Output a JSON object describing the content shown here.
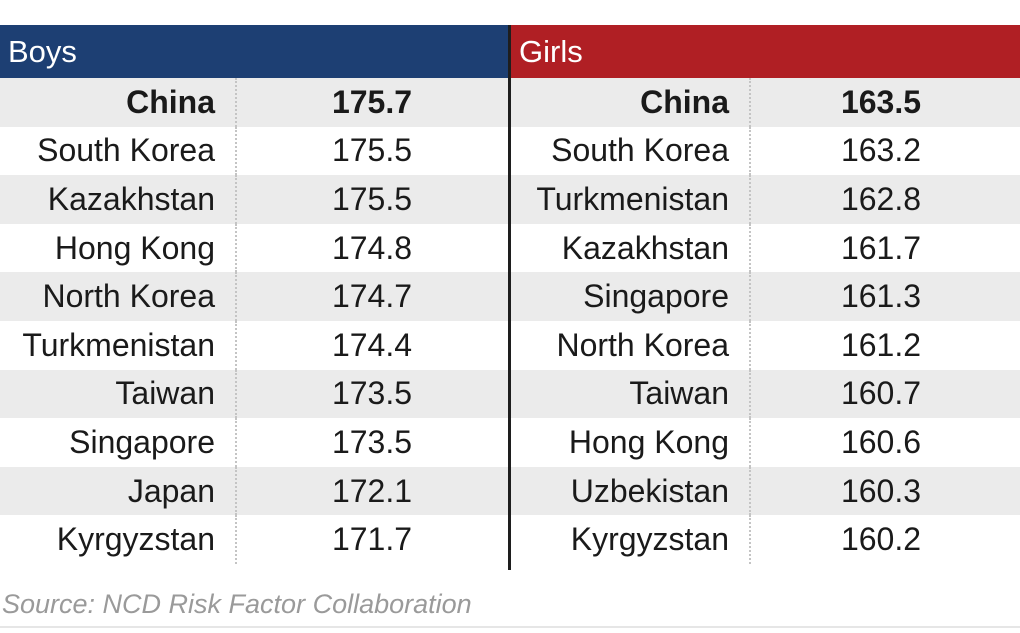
{
  "chart_data": {
    "type": "table",
    "tables": [
      {
        "header": "Boys",
        "header_color": "#1d3f73",
        "rows": [
          {
            "country": "China",
            "value": "175.7"
          },
          {
            "country": "South Korea",
            "value": "175.5"
          },
          {
            "country": "Kazakhstan",
            "value": "175.5"
          },
          {
            "country": "Hong Kong",
            "value": "174.8"
          },
          {
            "country": "North Korea",
            "value": "174.7"
          },
          {
            "country": "Turkmenistan",
            "value": "174.4"
          },
          {
            "country": "Taiwan",
            "value": "173.5"
          },
          {
            "country": "Singapore",
            "value": "173.5"
          },
          {
            "country": "Japan",
            "value": "172.1"
          },
          {
            "country": "Kyrgyzstan",
            "value": "171.7"
          }
        ]
      },
      {
        "header": "Girls",
        "header_color": "#b01f24",
        "rows": [
          {
            "country": "China",
            "value": "163.5"
          },
          {
            "country": "South Korea",
            "value": "163.2"
          },
          {
            "country": "Turkmenistan",
            "value": "162.8"
          },
          {
            "country": "Kazakhstan",
            "value": "161.7"
          },
          {
            "country": "Singapore",
            "value": "161.3"
          },
          {
            "country": "North Korea",
            "value": "161.2"
          },
          {
            "country": "Taiwan",
            "value": "160.7"
          },
          {
            "country": "Hong Kong",
            "value": "160.6"
          },
          {
            "country": "Uzbekistan",
            "value": "160.3"
          },
          {
            "country": "Kyrgyzstan",
            "value": "160.2"
          }
        ]
      }
    ],
    "source": "Source: NCD Risk Factor Collaboration"
  }
}
